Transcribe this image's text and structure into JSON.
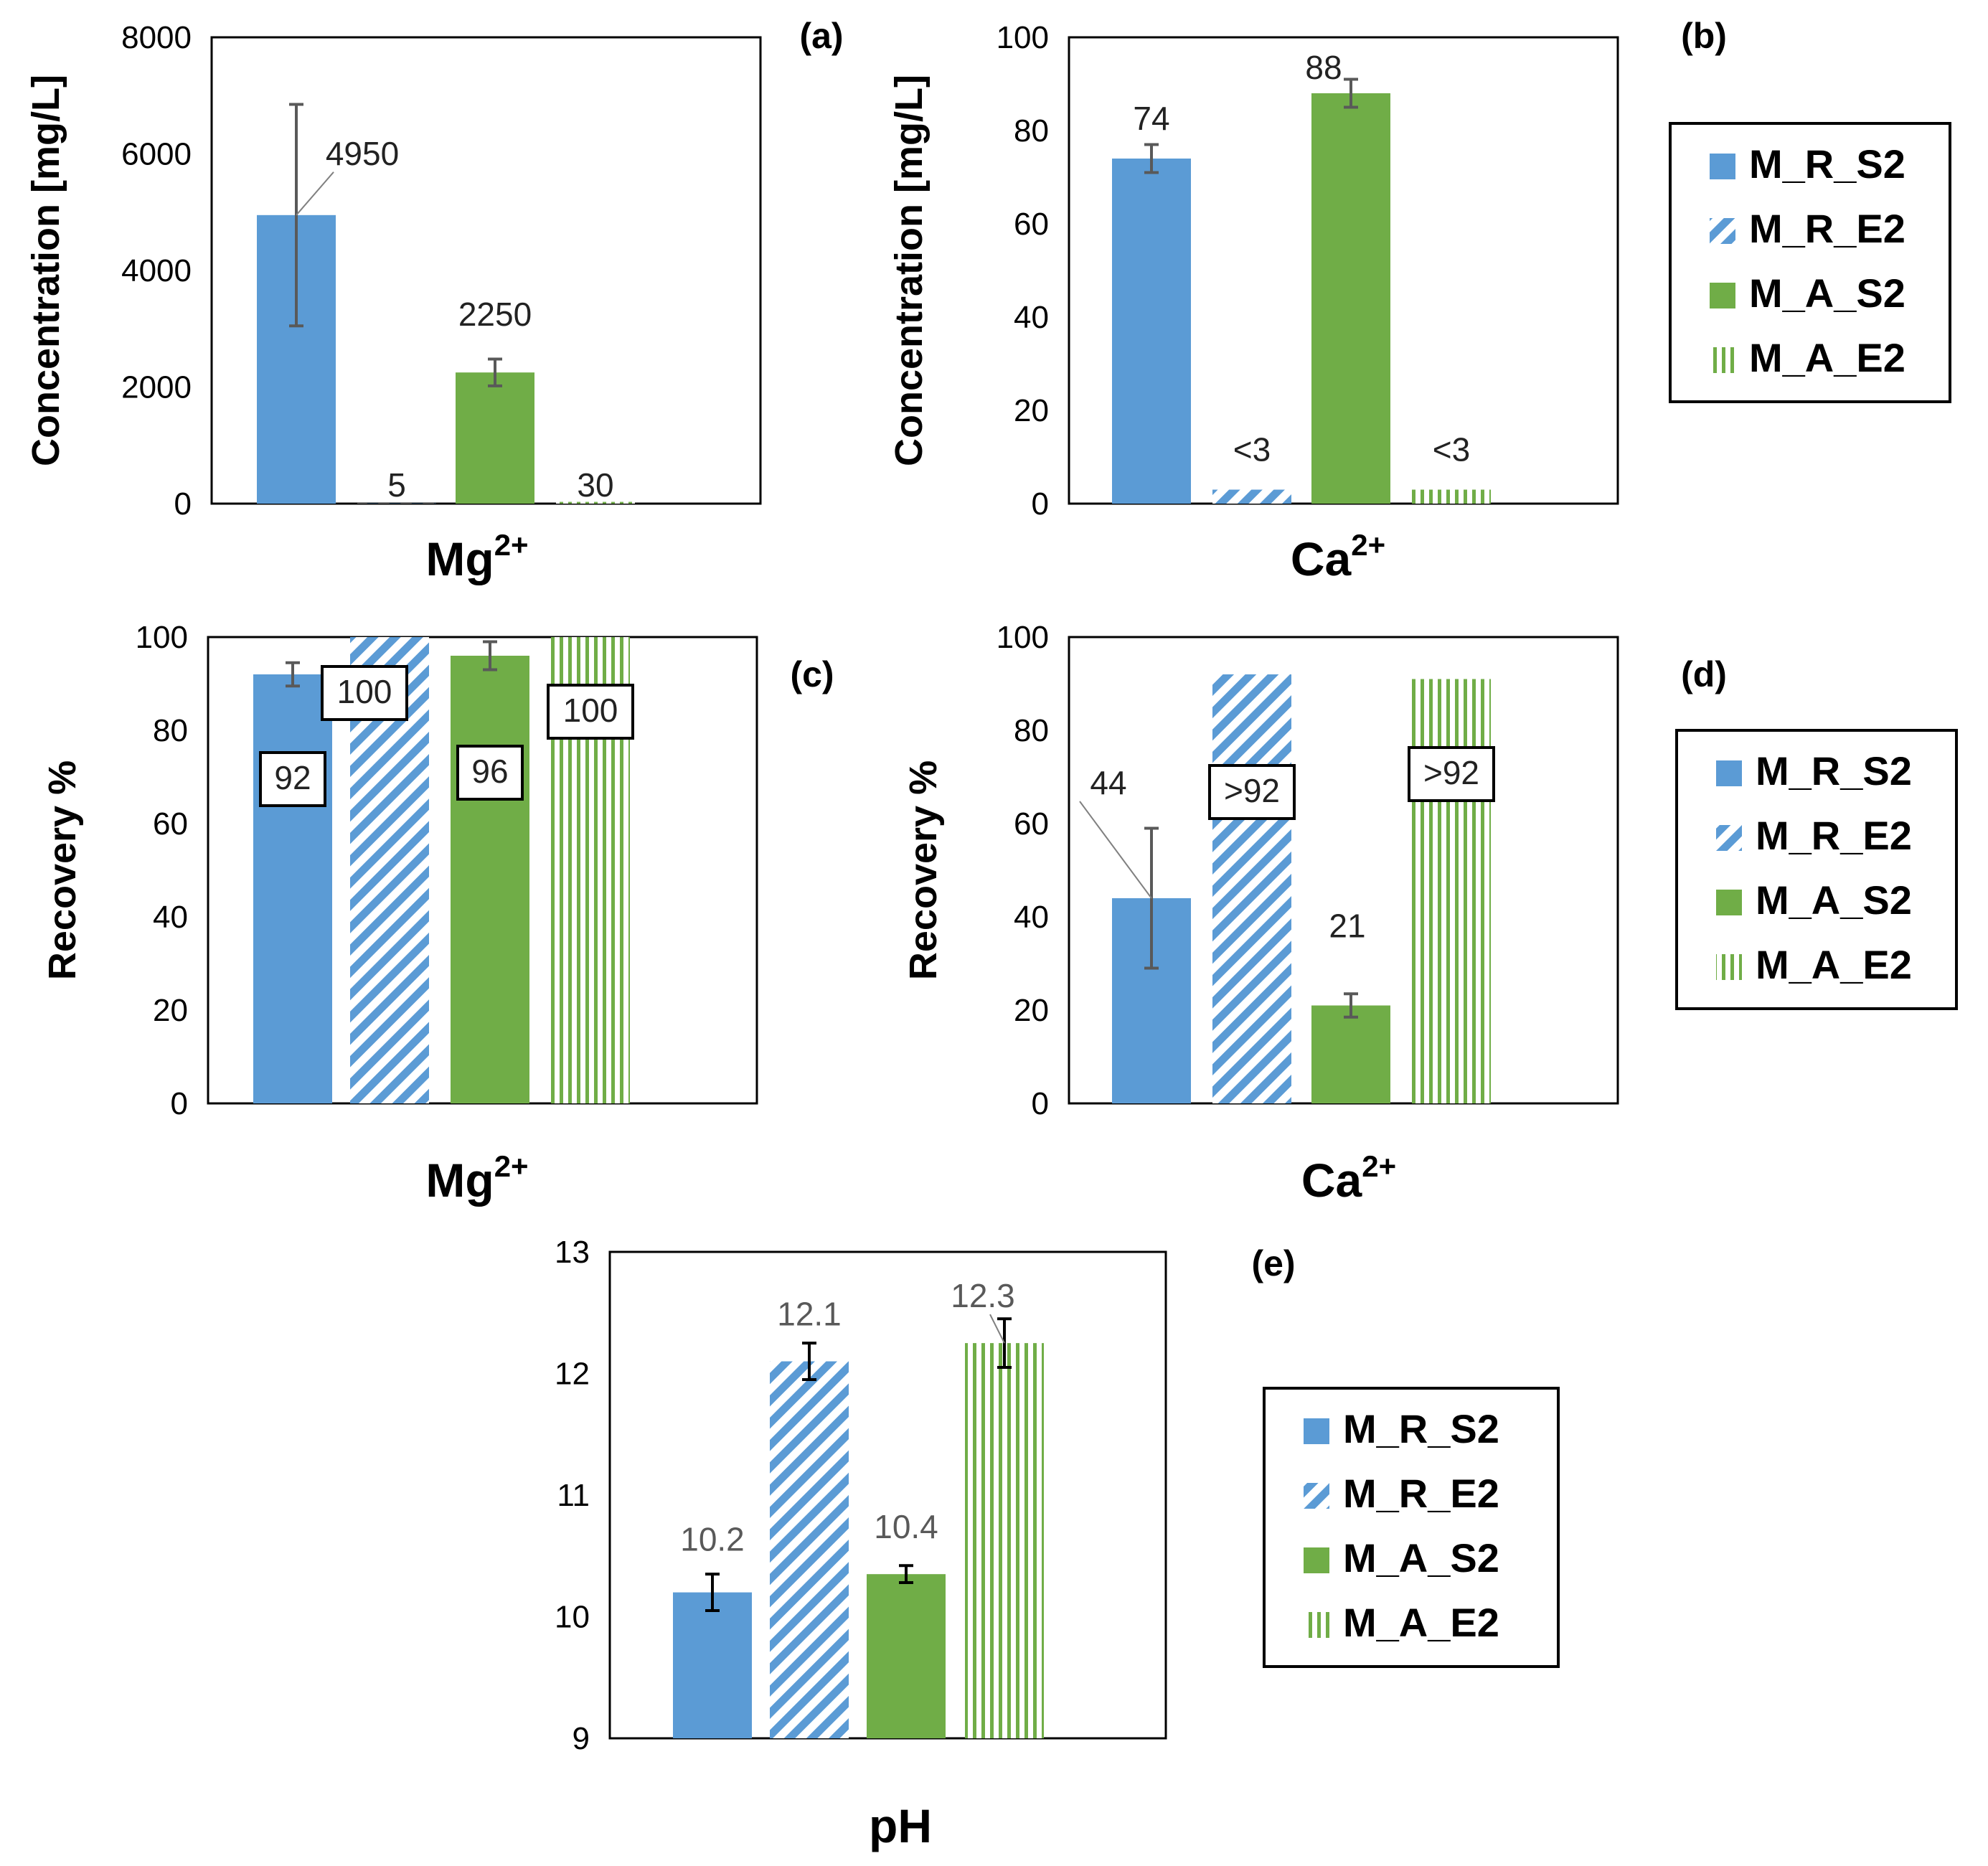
{
  "colors": {
    "blue": "#5b9bd5",
    "green": "#70ad47",
    "axis": "#000000",
    "error": "#595959"
  },
  "legend_series": [
    "M_R_S2",
    "M_R_E2",
    "M_A_S2",
    "M_A_E2"
  ],
  "legend_icons": [
    "solid-blue",
    "hatch-diagonal-blue",
    "solid-green",
    "hatch-vertical-green"
  ],
  "chart_data": [
    {
      "id": "a",
      "panel_label": "(a)",
      "type": "bar",
      "ylabel": "Concentration [mg/L]",
      "xlabel": "Mg",
      "xlabel_sup": "2+",
      "ylim": [
        0,
        8000
      ],
      "yticks": [
        "0",
        "2000",
        "4000",
        "6000",
        "8000"
      ],
      "categories": [
        "M_R_S2",
        "M_R_E2",
        "M_A_S2",
        "M_A_E2"
      ],
      "values": [
        4950,
        5,
        2250,
        30
      ],
      "errors": [
        1900,
        0,
        230,
        0
      ],
      "labels": [
        "4950",
        "5",
        "2250",
        "30"
      ]
    },
    {
      "id": "b",
      "panel_label": "(b)",
      "type": "bar",
      "ylabel": "Concentration [mg/L]",
      "xlabel": "Ca",
      "xlabel_sup": "2+",
      "ylim": [
        0,
        100
      ],
      "yticks": [
        "0",
        "20",
        "40",
        "60",
        "80",
        "100"
      ],
      "categories": [
        "M_R_S2",
        "M_R_E2",
        "M_A_S2",
        "M_A_E2"
      ],
      "values": [
        74,
        3,
        88,
        3
      ],
      "errors": [
        3,
        0,
        3,
        0
      ],
      "labels": [
        "74",
        "<3",
        "88",
        "<3"
      ]
    },
    {
      "id": "c",
      "panel_label": "(c)",
      "type": "bar",
      "ylabel": "Recovery %",
      "xlabel": "Mg",
      "xlabel_sup": "2+",
      "ylim": [
        0,
        100
      ],
      "yticks": [
        "0",
        "20",
        "40",
        "60",
        "80",
        "100"
      ],
      "categories": [
        "M_R_S2",
        "M_R_E2",
        "M_A_S2",
        "M_A_E2"
      ],
      "values": [
        92,
        100,
        96,
        100
      ],
      "errors": [
        2.5,
        0,
        3,
        0
      ],
      "labels": [
        "92",
        "100",
        "96",
        "100"
      ]
    },
    {
      "id": "d",
      "panel_label": "(d)",
      "type": "bar",
      "ylabel": "Recovery %",
      "xlabel": "Ca",
      "xlabel_sup": "2+",
      "ylim": [
        0,
        100
      ],
      "yticks": [
        "0",
        "20",
        "40",
        "60",
        "80",
        "100"
      ],
      "categories": [
        "M_R_S2",
        "M_R_E2",
        "M_A_S2",
        "M_A_E2"
      ],
      "values": [
        44,
        92,
        21,
        91
      ],
      "errors": [
        15,
        0,
        2.5,
        0
      ],
      "labels": [
        "44",
        ">92",
        "21",
        ">92"
      ]
    },
    {
      "id": "e",
      "panel_label": "(e)",
      "type": "bar",
      "ylabel": "",
      "xlabel": "pH",
      "xlabel_sup": "",
      "ylim": [
        9,
        13
      ],
      "yticks": [
        "9",
        "10",
        "11",
        "12",
        "13"
      ],
      "categories": [
        "M_R_S2",
        "M_R_E2",
        "M_A_S2",
        "M_A_E2"
      ],
      "values": [
        10.2,
        12.1,
        10.35,
        12.25
      ],
      "errors": [
        0.15,
        0.15,
        0.07,
        0.2
      ],
      "labels": [
        "10.2",
        "12.1",
        "10.4",
        "12.3"
      ]
    }
  ]
}
